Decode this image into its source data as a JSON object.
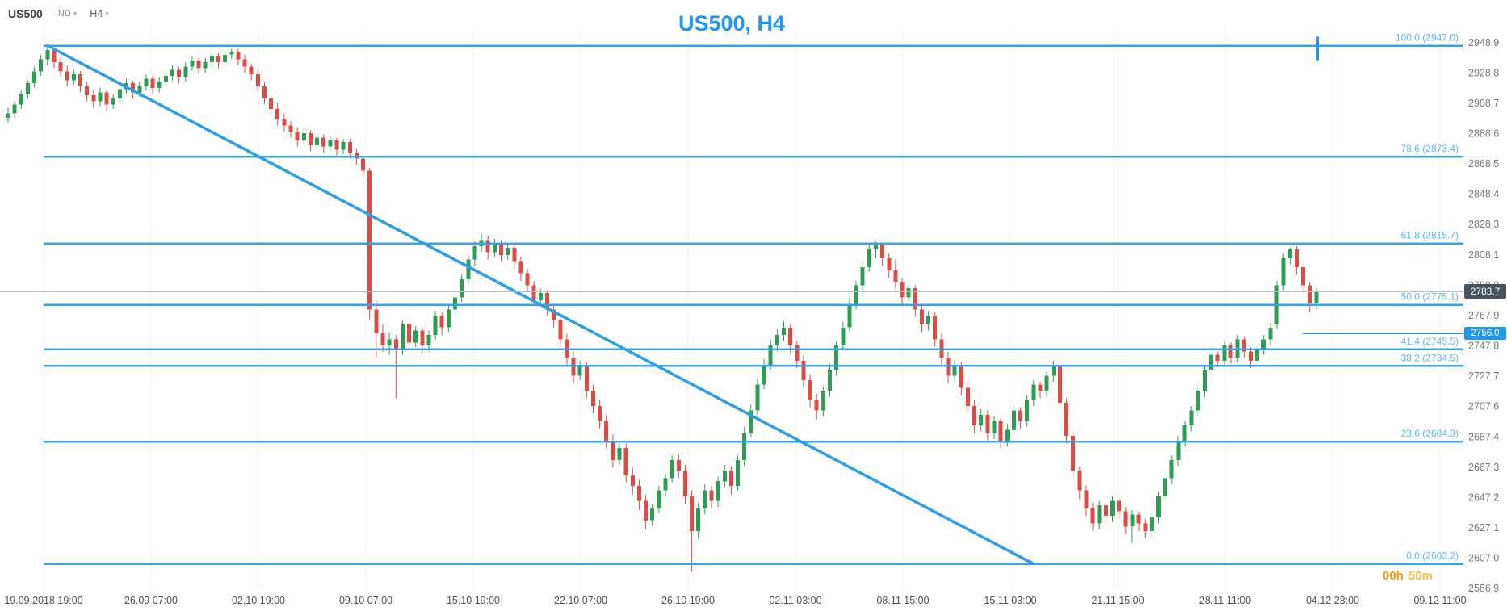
{
  "header": {
    "symbol": "US500",
    "indicator_label": "IND",
    "timeframe": "H4"
  },
  "title": "US500, H4",
  "countdown": {
    "hours": "00h",
    "minutes": "50m"
  },
  "colors": {
    "accent_blue": "#2196f3",
    "candle_up": "#2b9e54",
    "candle_down": "#dc4c46",
    "fib_line": "#35a3e8",
    "fib_label": "#5fb7ee",
    "trendline": "#2d9fe6",
    "alert": "#2196f3",
    "current_price_badge_bg": "#47525c",
    "alert_badge_bg": "#1e98f0",
    "countdown_orange": "#ef9a16"
  },
  "chart_data": {
    "type": "candlestick",
    "symbol": "US500",
    "timeframe": "H4",
    "title": "US500, H4",
    "legend": "none",
    "grid": "faint-vertical",
    "price_axis_ticks": [
      "2948.9",
      "2928.8",
      "2908.7",
      "2888.6",
      "2868.5",
      "2848.4",
      "2828.3",
      "2808.1",
      "2788.0",
      "2767.9",
      "2747.8",
      "2727.7",
      "2707.6",
      "2687.4",
      "2667.3",
      "2647.2",
      "2627.1",
      "2607.0",
      "2586.9"
    ],
    "time_axis_labels": [
      "19.09.2018 19:00",
      "26.09 07:00",
      "02.10 19:00",
      "09.10 07:00",
      "15.10 19:00",
      "22.10 07:00",
      "26.10 19:00",
      "02.11 03:00",
      "08.11 15:00",
      "15.11 03:00",
      "21.11 15:00",
      "28.11 11:00",
      "04.12 23:00",
      "09.12 11:00"
    ],
    "fib_levels": [
      {
        "label": "100.0 (2947.0)",
        "price": 2947.0
      },
      {
        "label": "78.6 (2873.4)",
        "price": 2873.4
      },
      {
        "label": "61.8 (2815.7)",
        "price": 2815.7
      },
      {
        "label": "50.0 (2775.1)",
        "price": 2775.1
      },
      {
        "label": "41.4 (2745.5)",
        "price": 2745.5
      },
      {
        "label": "38.2 (2734.5)",
        "price": 2734.5
      },
      {
        "label": "23.6 (2684.3)",
        "price": 2684.3
      },
      {
        "label": "0.0 (2603.2)",
        "price": 2603.2
      }
    ],
    "trendline": {
      "from_index": 6,
      "from_price": 2947.0,
      "to_index": 156,
      "to_price": 2603.2
    },
    "current_price": "2783.7",
    "alert_price": "2756.0",
    "alert_line_from_index": 197,
    "candles": [
      [
        2899,
        2906,
        2896,
        2902
      ],
      [
        2902,
        2910,
        2899,
        2908
      ],
      [
        2908,
        2917,
        2905,
        2915
      ],
      [
        2915,
        2924,
        2912,
        2922
      ],
      [
        2922,
        2933,
        2919,
        2930
      ],
      [
        2930,
        2941,
        2927,
        2938
      ],
      [
        2938,
        2947,
        2934,
        2944
      ],
      [
        2944,
        2946,
        2932,
        2936
      ],
      [
        2936,
        2939,
        2926,
        2930
      ],
      [
        2930,
        2934,
        2920,
        2924
      ],
      [
        2924,
        2931,
        2921,
        2928
      ],
      [
        2928,
        2930,
        2916,
        2920
      ],
      [
        2920,
        2923,
        2910,
        2914
      ],
      [
        2914,
        2918,
        2906,
        2910
      ],
      [
        2910,
        2919,
        2907,
        2916
      ],
      [
        2916,
        2918,
        2904,
        2908
      ],
      [
        2908,
        2915,
        2905,
        2912
      ],
      [
        2912,
        2921,
        2909,
        2918
      ],
      [
        2918,
        2925,
        2915,
        2922
      ],
      [
        2922,
        2924,
        2912,
        2916
      ],
      [
        2916,
        2923,
        2913,
        2920
      ],
      [
        2920,
        2928,
        2917,
        2925
      ],
      [
        2925,
        2927,
        2915,
        2919
      ],
      [
        2919,
        2926,
        2916,
        2923
      ],
      [
        2923,
        2930,
        2920,
        2927
      ],
      [
        2927,
        2934,
        2924,
        2931
      ],
      [
        2931,
        2933,
        2922,
        2926
      ],
      [
        2926,
        2936,
        2923,
        2933
      ],
      [
        2933,
        2940,
        2930,
        2937
      ],
      [
        2937,
        2939,
        2928,
        2932
      ],
      [
        2932,
        2939,
        2929,
        2936
      ],
      [
        2936,
        2943,
        2933,
        2940
      ],
      [
        2940,
        2942,
        2932,
        2936
      ],
      [
        2936,
        2944,
        2933,
        2941
      ],
      [
        2941,
        2945,
        2938,
        2943
      ],
      [
        2943,
        2945,
        2934,
        2938
      ],
      [
        2938,
        2941,
        2929,
        2933
      ],
      [
        2933,
        2935,
        2924,
        2928
      ],
      [
        2928,
        2931,
        2916,
        2920
      ],
      [
        2920,
        2923,
        2908,
        2912
      ],
      [
        2912,
        2916,
        2901,
        2905
      ],
      [
        2905,
        2909,
        2894,
        2898
      ],
      [
        2898,
        2902,
        2890,
        2894
      ],
      [
        2894,
        2897,
        2886,
        2890
      ],
      [
        2890,
        2893,
        2880,
        2884
      ],
      [
        2884,
        2892,
        2881,
        2889
      ],
      [
        2889,
        2891,
        2877,
        2881
      ],
      [
        2881,
        2889,
        2878,
        2886
      ],
      [
        2886,
        2888,
        2876,
        2880
      ],
      [
        2880,
        2887,
        2877,
        2884
      ],
      [
        2884,
        2886,
        2874,
        2878
      ],
      [
        2878,
        2885,
        2875,
        2883
      ],
      [
        2883,
        2885,
        2872,
        2876
      ],
      [
        2876,
        2879,
        2868,
        2872
      ],
      [
        2872,
        2874,
        2860,
        2864
      ],
      [
        2864,
        2866,
        2765,
        2772
      ],
      [
        2772,
        2778,
        2740,
        2756
      ],
      [
        2756,
        2762,
        2744,
        2748
      ],
      [
        2748,
        2757,
        2742,
        2752
      ],
      [
        2752,
        2755,
        2713,
        2745
      ],
      [
        2745,
        2765,
        2742,
        2762
      ],
      [
        2762,
        2766,
        2746,
        2750
      ],
      [
        2750,
        2761,
        2747,
        2758
      ],
      [
        2758,
        2760,
        2743,
        2748
      ],
      [
        2748,
        2758,
        2744,
        2755
      ],
      [
        2755,
        2771,
        2752,
        2768
      ],
      [
        2768,
        2770,
        2755,
        2760
      ],
      [
        2760,
        2775,
        2757,
        2772
      ],
      [
        2772,
        2783,
        2769,
        2780
      ],
      [
        2780,
        2795,
        2777,
        2792
      ],
      [
        2792,
        2808,
        2789,
        2805
      ],
      [
        2805,
        2817,
        2801,
        2814
      ],
      [
        2814,
        2822,
        2810,
        2818
      ],
      [
        2818,
        2821,
        2805,
        2810
      ],
      [
        2810,
        2819,
        2807,
        2816
      ],
      [
        2816,
        2818,
        2804,
        2808
      ],
      [
        2808,
        2816,
        2805,
        2813
      ],
      [
        2813,
        2815,
        2799,
        2804
      ],
      [
        2804,
        2807,
        2791,
        2796
      ],
      [
        2796,
        2799,
        2784,
        2788
      ],
      [
        2788,
        2791,
        2774,
        2778
      ],
      [
        2778,
        2786,
        2775,
        2783
      ],
      [
        2783,
        2785,
        2768,
        2772
      ],
      [
        2772,
        2775,
        2760,
        2765
      ],
      [
        2765,
        2768,
        2748,
        2752
      ],
      [
        2752,
        2756,
        2735,
        2740
      ],
      [
        2740,
        2744,
        2723,
        2728
      ],
      [
        2728,
        2738,
        2725,
        2735
      ],
      [
        2735,
        2737,
        2713,
        2718
      ],
      [
        2718,
        2722,
        2703,
        2708
      ],
      [
        2708,
        2712,
        2693,
        2698
      ],
      [
        2698,
        2702,
        2680,
        2685
      ],
      [
        2685,
        2689,
        2667,
        2672
      ],
      [
        2672,
        2683,
        2669,
        2680
      ],
      [
        2680,
        2683,
        2657,
        2662
      ],
      [
        2662,
        2667,
        2649,
        2655
      ],
      [
        2655,
        2659,
        2639,
        2645
      ],
      [
        2645,
        2649,
        2626,
        2632
      ],
      [
        2632,
        2643,
        2628,
        2640
      ],
      [
        2640,
        2655,
        2637,
        2652
      ],
      [
        2652,
        2663,
        2648,
        2660
      ],
      [
        2660,
        2675,
        2657,
        2672
      ],
      [
        2672,
        2676,
        2660,
        2665
      ],
      [
        2665,
        2669,
        2643,
        2648
      ],
      [
        2648,
        2652,
        2598,
        2625
      ],
      [
        2625,
        2644,
        2620,
        2640
      ],
      [
        2640,
        2656,
        2636,
        2652
      ],
      [
        2652,
        2655,
        2640,
        2645
      ],
      [
        2645,
        2661,
        2641,
        2658
      ],
      [
        2658,
        2669,
        2654,
        2665
      ],
      [
        2665,
        2668,
        2649,
        2655
      ],
      [
        2655,
        2675,
        2652,
        2672
      ],
      [
        2672,
        2694,
        2668,
        2690
      ],
      [
        2690,
        2709,
        2687,
        2705
      ],
      [
        2705,
        2726,
        2702,
        2722
      ],
      [
        2722,
        2739,
        2719,
        2735
      ],
      [
        2735,
        2752,
        2732,
        2748
      ],
      [
        2748,
        2759,
        2744,
        2755
      ],
      [
        2755,
        2764,
        2751,
        2760
      ],
      [
        2760,
        2762,
        2743,
        2748
      ],
      [
        2748,
        2751,
        2733,
        2738
      ],
      [
        2738,
        2742,
        2720,
        2725
      ],
      [
        2725,
        2729,
        2707,
        2712
      ],
      [
        2712,
        2716,
        2699,
        2705
      ],
      [
        2705,
        2721,
        2701,
        2718
      ],
      [
        2718,
        2736,
        2714,
        2732
      ],
      [
        2732,
        2751,
        2728,
        2748
      ],
      [
        2748,
        2764,
        2745,
        2760
      ],
      [
        2760,
        2779,
        2757,
        2775
      ],
      [
        2775,
        2791,
        2772,
        2788
      ],
      [
        2788,
        2804,
        2785,
        2800
      ],
      [
        2800,
        2815,
        2797,
        2812
      ],
      [
        2812,
        2817,
        2806,
        2815
      ],
      [
        2815,
        2816,
        2801,
        2806
      ],
      [
        2806,
        2809,
        2793,
        2798
      ],
      [
        2798,
        2805,
        2786,
        2790
      ],
      [
        2790,
        2793,
        2775,
        2780
      ],
      [
        2780,
        2789,
        2777,
        2786
      ],
      [
        2786,
        2788,
        2767,
        2772
      ],
      [
        2772,
        2775,
        2757,
        2762
      ],
      [
        2762,
        2771,
        2758,
        2768
      ],
      [
        2768,
        2770,
        2747,
        2752
      ],
      [
        2752,
        2756,
        2735,
        2740
      ],
      [
        2740,
        2744,
        2723,
        2728
      ],
      [
        2728,
        2738,
        2724,
        2735
      ],
      [
        2735,
        2737,
        2715,
        2720
      ],
      [
        2720,
        2724,
        2703,
        2708
      ],
      [
        2708,
        2712,
        2690,
        2695
      ],
      [
        2695,
        2706,
        2691,
        2702
      ],
      [
        2702,
        2705,
        2685,
        2690
      ],
      [
        2690,
        2701,
        2686,
        2698
      ],
      [
        2698,
        2700,
        2680,
        2685
      ],
      [
        2685,
        2696,
        2681,
        2692
      ],
      [
        2692,
        2708,
        2688,
        2705
      ],
      [
        2705,
        2707,
        2693,
        2698
      ],
      [
        2698,
        2715,
        2694,
        2712
      ],
      [
        2712,
        2725,
        2708,
        2722
      ],
      [
        2722,
        2724,
        2713,
        2718
      ],
      [
        2718,
        2731,
        2714,
        2728
      ],
      [
        2728,
        2738,
        2724,
        2735
      ],
      [
        2735,
        2737,
        2706,
        2710
      ],
      [
        2710,
        2713,
        2683,
        2688
      ],
      [
        2688,
        2691,
        2660,
        2665
      ],
      [
        2665,
        2668,
        2646,
        2652
      ],
      [
        2652,
        2655,
        2635,
        2640
      ],
      [
        2640,
        2644,
        2625,
        2630
      ],
      [
        2630,
        2645,
        2626,
        2642
      ],
      [
        2642,
        2644,
        2629,
        2635
      ],
      [
        2635,
        2648,
        2631,
        2645
      ],
      [
        2645,
        2647,
        2633,
        2638
      ],
      [
        2638,
        2641,
        2623,
        2628
      ],
      [
        2628,
        2639,
        2617,
        2636
      ],
      [
        2636,
        2638,
        2625,
        2630
      ],
      [
        2630,
        2633,
        2620,
        2625
      ],
      [
        2625,
        2637,
        2621,
        2634
      ],
      [
        2634,
        2651,
        2630,
        2648
      ],
      [
        2648,
        2663,
        2644,
        2660
      ],
      [
        2660,
        2675,
        2656,
        2672
      ],
      [
        2672,
        2688,
        2668,
        2685
      ],
      [
        2685,
        2698,
        2681,
        2695
      ],
      [
        2695,
        2708,
        2691,
        2705
      ],
      [
        2705,
        2721,
        2701,
        2718
      ],
      [
        2718,
        2735,
        2714,
        2732
      ],
      [
        2732,
        2745,
        2728,
        2742
      ],
      [
        2742,
        2744,
        2734,
        2738
      ],
      [
        2738,
        2751,
        2734,
        2748
      ],
      [
        2748,
        2750,
        2736,
        2740
      ],
      [
        2740,
        2755,
        2737,
        2752
      ],
      [
        2752,
        2754,
        2740,
        2744
      ],
      [
        2744,
        2747,
        2733,
        2738
      ],
      [
        2738,
        2749,
        2735,
        2746
      ],
      [
        2746,
        2755,
        2742,
        2752
      ],
      [
        2752,
        2763,
        2748,
        2760
      ],
      [
        2762,
        2791,
        2759,
        2788
      ],
      [
        2788,
        2809,
        2785,
        2806
      ],
      [
        2806,
        2813,
        2802,
        2812
      ],
      [
        2812,
        2814,
        2795,
        2800
      ],
      [
        2800,
        2802,
        2783,
        2788
      ],
      [
        2788,
        2790,
        2770,
        2776
      ],
      [
        2776,
        2786,
        2772,
        2783.7
      ]
    ]
  }
}
